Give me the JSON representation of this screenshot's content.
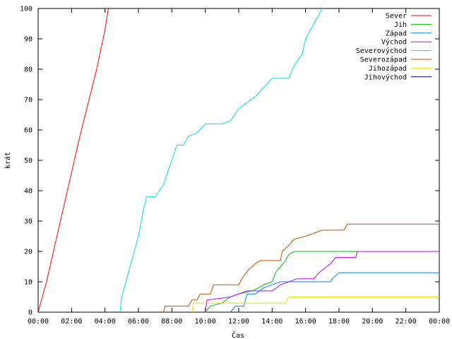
{
  "chart_data": {
    "type": "line",
    "title": "",
    "xlabel": "Čas",
    "ylabel": "krát",
    "xlim": [
      0,
      24
    ],
    "ylim": [
      0,
      100
    ],
    "x_ticks": [
      "00:00",
      "02:00",
      "04:00",
      "06:00",
      "08:00",
      "10:00",
      "12:00",
      "14:00",
      "16:00",
      "18:00",
      "20:00",
      "22:00",
      "00:00"
    ],
    "y_ticks": [
      0,
      10,
      20,
      30,
      40,
      50,
      60,
      70,
      80,
      90,
      100
    ],
    "grid": false,
    "legend_position": "top-right",
    "x_unit": "hours",
    "series": [
      {
        "name": "Sever",
        "color": "#ff0000",
        "points": [
          [
            0,
            0
          ],
          [
            0.5,
            10
          ],
          [
            1,
            22
          ],
          [
            1.5,
            34
          ],
          [
            2,
            46
          ],
          [
            2.5,
            58
          ],
          [
            3,
            69
          ],
          [
            3.5,
            80
          ],
          [
            4,
            93
          ],
          [
            4.2,
            100
          ]
        ]
      },
      {
        "name": "Jih",
        "color": "#00c000",
        "points": [
          [
            10,
            0
          ],
          [
            10.3,
            2
          ],
          [
            11,
            3
          ],
          [
            11.5,
            5
          ],
          [
            12,
            6
          ],
          [
            12.8,
            7
          ],
          [
            13.2,
            8
          ],
          [
            13.5,
            9
          ],
          [
            14,
            10
          ],
          [
            14.2,
            13
          ],
          [
            14.5,
            15
          ],
          [
            14.8,
            17
          ],
          [
            15,
            19
          ],
          [
            15.3,
            20
          ],
          [
            24,
            20
          ]
        ]
      },
      {
        "name": "Západ",
        "color": "#0080ff",
        "points": [
          [
            11.5,
            0
          ],
          [
            11.8,
            2
          ],
          [
            12.3,
            2
          ],
          [
            12.5,
            6
          ],
          [
            13,
            6
          ],
          [
            13.5,
            8
          ],
          [
            14,
            9
          ],
          [
            14.5,
            10
          ],
          [
            17.5,
            10
          ],
          [
            17.6,
            11
          ],
          [
            18,
            13
          ],
          [
            24,
            13
          ]
        ]
      },
      {
        "name": "Východ",
        "color": "#c000ff",
        "points": [
          [
            10,
            0
          ],
          [
            10.1,
            4
          ],
          [
            11.5,
            5
          ],
          [
            12.5,
            7
          ],
          [
            14,
            7
          ],
          [
            14.5,
            9
          ],
          [
            15.5,
            11
          ],
          [
            16.5,
            11
          ],
          [
            16.8,
            13
          ],
          [
            17.5,
            16
          ],
          [
            17.8,
            18
          ],
          [
            19,
            18
          ],
          [
            19.1,
            20
          ],
          [
            24,
            20
          ]
        ]
      },
      {
        "name": "Severovýchod",
        "color": "#00e0e0",
        "points": [
          [
            4.9,
            0
          ],
          [
            5,
            5
          ],
          [
            5.5,
            15
          ],
          [
            6,
            25
          ],
          [
            6.3,
            34
          ],
          [
            6.5,
            38
          ],
          [
            7,
            38
          ],
          [
            7.5,
            42
          ],
          [
            7.8,
            47
          ],
          [
            8,
            50
          ],
          [
            8.3,
            55
          ],
          [
            8.7,
            55
          ],
          [
            9,
            58
          ],
          [
            9.5,
            59
          ],
          [
            10,
            62
          ],
          [
            11,
            62
          ],
          [
            11.5,
            63
          ],
          [
            12,
            67
          ],
          [
            12.5,
            69
          ],
          [
            13,
            71
          ],
          [
            13.5,
            74
          ],
          [
            14,
            77
          ],
          [
            15,
            77
          ],
          [
            15.3,
            81
          ],
          [
            15.8,
            85
          ],
          [
            16,
            90
          ],
          [
            16.5,
            95
          ],
          [
            16.8,
            98
          ],
          [
            17,
            100
          ]
        ]
      },
      {
        "name": "Severozápad",
        "color": "#c05000",
        "points": [
          [
            7.5,
            0
          ],
          [
            7.6,
            2
          ],
          [
            9,
            2
          ],
          [
            9.2,
            4
          ],
          [
            9.5,
            4
          ],
          [
            9.7,
            6
          ],
          [
            10.3,
            6
          ],
          [
            10.5,
            9
          ],
          [
            12,
            9
          ],
          [
            12.3,
            12
          ],
          [
            12.6,
            14
          ],
          [
            13,
            16
          ],
          [
            13.3,
            17
          ],
          [
            14.5,
            17
          ],
          [
            14.6,
            20
          ],
          [
            15,
            22
          ],
          [
            15.3,
            24
          ],
          [
            16,
            25
          ],
          [
            17,
            27
          ],
          [
            18.3,
            27
          ],
          [
            18.5,
            29
          ],
          [
            24,
            29
          ]
        ]
      },
      {
        "name": "Jihozápad",
        "color": "#e0e000",
        "points": [
          [
            9.2,
            0
          ],
          [
            9.3,
            3
          ],
          [
            10.5,
            3
          ],
          [
            10.6,
            3
          ],
          [
            12.5,
            3
          ],
          [
            13,
            3
          ],
          [
            14.8,
            3
          ],
          [
            15,
            5
          ],
          [
            24,
            5
          ]
        ]
      },
      {
        "name": "Jihovýchod",
        "color": "#000080",
        "points": []
      }
    ]
  }
}
